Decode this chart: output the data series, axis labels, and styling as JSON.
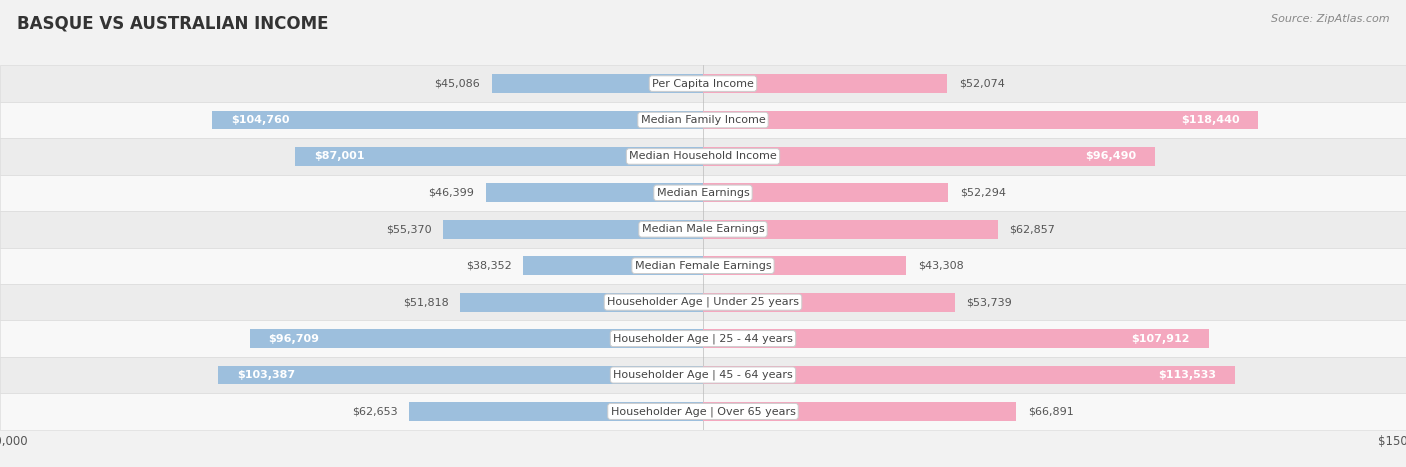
{
  "title": "BASQUE VS AUSTRALIAN INCOME",
  "source": "Source: ZipAtlas.com",
  "categories": [
    "Per Capita Income",
    "Median Family Income",
    "Median Household Income",
    "Median Earnings",
    "Median Male Earnings",
    "Median Female Earnings",
    "Householder Age | Under 25 years",
    "Householder Age | 25 - 44 years",
    "Householder Age | 45 - 64 years",
    "Householder Age | Over 65 years"
  ],
  "basque_values": [
    45086,
    104760,
    87001,
    46399,
    55370,
    38352,
    51818,
    96709,
    103387,
    62653
  ],
  "australian_values": [
    52074,
    118440,
    96490,
    52294,
    62857,
    43308,
    53739,
    107912,
    113533,
    66891
  ],
  "basque_color": "#9dbfdd",
  "australian_color": "#f4a8bf",
  "max_value": 150000,
  "bg_color": "#f2f2f2",
  "row_even_color": "#ececec",
  "row_odd_color": "#f8f8f8",
  "row_border_color": "#d8d8d8",
  "label_bg": "#ffffff",
  "label_border": "#cccccc",
  "title_fontsize": 12,
  "label_fontsize": 8,
  "value_fontsize": 8,
  "legend_fontsize": 8.5,
  "axis_label_fontsize": 8.5,
  "basque_threshold": 70000,
  "australian_threshold": 70000
}
